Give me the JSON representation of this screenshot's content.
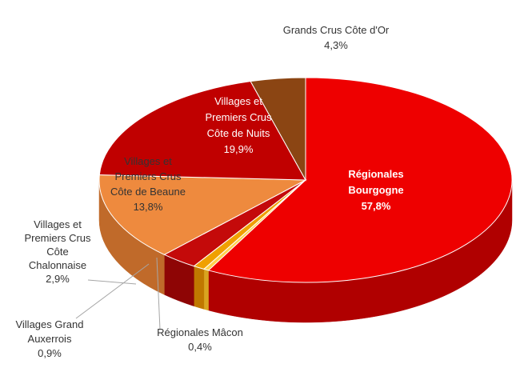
{
  "chart_data": {
    "type": "pie",
    "title": "",
    "slices": [
      {
        "label_lines": [
          "Régionales",
          "Bourgogne"
        ],
        "value": 57.8,
        "value_label": "57,8%",
        "color": "#ee0000",
        "side": "#b00000",
        "bold": true,
        "text_color": "#ffffff"
      },
      {
        "label_lines": [
          "Régionales Mâcon"
        ],
        "value": 0.4,
        "value_label": "0,4%",
        "color": "#ffd24d",
        "side": "#d9a520",
        "bold": false,
        "text_color": "#333333"
      },
      {
        "label_lines": [
          "Villages Grand",
          "Auxerrois"
        ],
        "value": 0.9,
        "value_label": "0,9%",
        "color": "#f0a000",
        "side": "#c07800",
        "bold": false,
        "text_color": "#333333"
      },
      {
        "label_lines": [
          "Villages et",
          "Premiers Crus",
          "Côte",
          "Chalonnaise"
        ],
        "value": 2.9,
        "value_label": "2,9%",
        "color": "#c40a0a",
        "side": "#8e0505",
        "bold": false,
        "text_color": "#333333"
      },
      {
        "label_lines": [
          "Villages et",
          "Premiers Crus",
          "Côte de Beaune"
        ],
        "value": 13.8,
        "value_label": "13,8%",
        "color": "#ee8a3e",
        "side": "#c06a2a",
        "bold": false,
        "text_color": "#333333"
      },
      {
        "label_lines": [
          "Villages et",
          "Premiers Crus",
          "Côte de Nuits"
        ],
        "value": 19.9,
        "value_label": "19,9%",
        "color": "#c00000",
        "side": "#8a0000",
        "bold": false,
        "text_color": "#ffffff"
      },
      {
        "label_lines": [
          "Grands Crus Côte d'Or"
        ],
        "value": 4.3,
        "value_label": "4,3%",
        "color": "#8b4513",
        "side": "#5e2e0c",
        "bold": false,
        "text_color": "#333333"
      }
    ]
  }
}
